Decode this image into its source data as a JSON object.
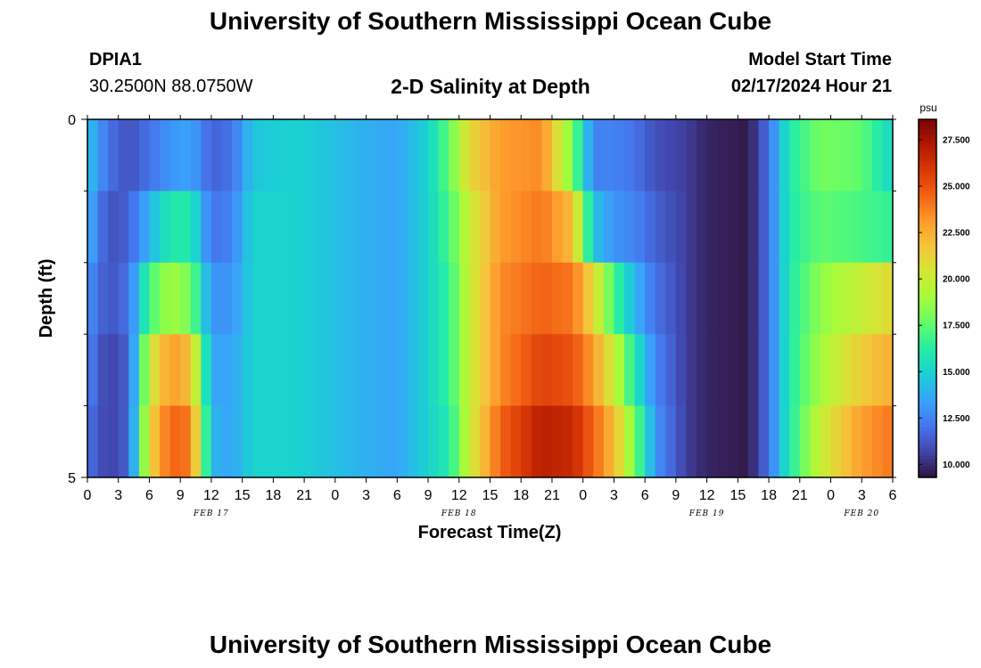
{
  "header": {
    "title": "University of Southern Mississippi Ocean Cube",
    "station_id": "DPIA1",
    "station_coords": "30.2500N  88.0750W",
    "model_start_label": "Model Start Time",
    "model_start_value": "02/17/2024 Hour 21"
  },
  "footer": {
    "title": "University of Southern Mississippi Ocean Cube"
  },
  "chart_data": {
    "type": "heatmap",
    "title": "2-D Salinity at Depth",
    "xlabel": "Forecast Time(Z)",
    "ylabel": "Depth (ft)",
    "x_tick_labels": [
      "0",
      "3",
      "6",
      "9",
      "12",
      "15",
      "18",
      "21",
      "0",
      "3",
      "6",
      "9",
      "12",
      "15",
      "18",
      "21",
      "0",
      "3",
      "6",
      "9",
      "12",
      "15",
      "18",
      "21",
      "0",
      "3",
      "6"
    ],
    "date_labels": [
      "FEB 17",
      "FEB 18",
      "FEB 19",
      "FEB 20"
    ],
    "y_tick_labels": [
      "0",
      "5"
    ],
    "ylim": [
      0,
      5
    ],
    "hours_total": 78,
    "depth_rows": 5,
    "colorbar": {
      "unit": "psu",
      "labels": [
        "27.500",
        "25.000",
        "22.500",
        "20.000",
        "17.500",
        "15.000",
        "12.500",
        "10.000"
      ],
      "range": [
        9.3,
        28.6
      ]
    },
    "anchors": [
      {
        "h": 0,
        "v": [
          14.5,
          14.0,
          13.0,
          12.5,
          12.0
        ]
      },
      {
        "h": 2,
        "v": [
          12.0,
          11.0,
          11.0,
          10.5,
          10.5
        ]
      },
      {
        "h": 4,
        "v": [
          11.0,
          11.5,
          12.0,
          11.5,
          11.5
        ]
      },
      {
        "h": 6,
        "v": [
          12.0,
          14.0,
          17.0,
          20.0,
          21.0
        ]
      },
      {
        "h": 8,
        "v": [
          13.0,
          16.0,
          19.0,
          23.0,
          24.5
        ]
      },
      {
        "h": 10,
        "v": [
          13.5,
          16.0,
          18.0,
          22.0,
          24.0
        ]
      },
      {
        "h": 12,
        "v": [
          11.5,
          12.0,
          13.0,
          13.5,
          14.0
        ]
      },
      {
        "h": 14,
        "v": [
          12.0,
          12.5,
          13.0,
          13.5,
          13.5
        ]
      },
      {
        "h": 16,
        "v": [
          14.5,
          15.0,
          15.0,
          15.0,
          15.0
        ]
      },
      {
        "h": 20,
        "v": [
          15.0,
          15.0,
          15.0,
          15.0,
          15.0
        ]
      },
      {
        "h": 26,
        "v": [
          14.0,
          14.0,
          14.0,
          14.0,
          14.0
        ]
      },
      {
        "h": 30,
        "v": [
          13.5,
          13.5,
          13.5,
          13.5,
          13.5
        ]
      },
      {
        "h": 33,
        "v": [
          15.0,
          15.0,
          15.0,
          15.0,
          15.0
        ]
      },
      {
        "h": 35,
        "v": [
          17.5,
          17.0,
          16.5,
          16.5,
          16.0
        ]
      },
      {
        "h": 37,
        "v": [
          21.0,
          20.0,
          20.0,
          20.0,
          20.0
        ]
      },
      {
        "h": 40,
        "v": [
          23.0,
          23.0,
          23.5,
          23.5,
          24.5
        ]
      },
      {
        "h": 44,
        "v": [
          23.5,
          24.0,
          24.5,
          25.5,
          27.0
        ]
      },
      {
        "h": 47,
        "v": [
          18.0,
          22.0,
          24.0,
          25.0,
          26.5
        ]
      },
      {
        "h": 49,
        "v": [
          12.5,
          14.5,
          21.0,
          23.0,
          24.5
        ]
      },
      {
        "h": 51,
        "v": [
          12.5,
          13.0,
          17.0,
          20.0,
          22.0
        ]
      },
      {
        "h": 53,
        "v": [
          12.0,
          12.5,
          14.0,
          16.0,
          18.0
        ]
      },
      {
        "h": 55,
        "v": [
          11.0,
          11.5,
          12.0,
          12.5,
          13.0
        ]
      },
      {
        "h": 58,
        "v": [
          10.5,
          10.5,
          10.5,
          10.5,
          10.5
        ]
      },
      {
        "h": 60,
        "v": [
          9.8,
          9.8,
          9.8,
          9.8,
          9.8
        ]
      },
      {
        "h": 64,
        "v": [
          9.5,
          9.5,
          9.5,
          9.5,
          9.5
        ]
      },
      {
        "h": 66,
        "v": [
          12.0,
          12.0,
          12.0,
          12.0,
          12.0
        ]
      },
      {
        "h": 68,
        "v": [
          16.0,
          16.0,
          16.0,
          16.0,
          16.0
        ]
      },
      {
        "h": 71,
        "v": [
          18.0,
          17.5,
          18.5,
          19.0,
          20.0
        ]
      },
      {
        "h": 75,
        "v": [
          17.5,
          17.0,
          20.0,
          21.5,
          23.0
        ]
      },
      {
        "h": 78,
        "v": [
          15.0,
          16.5,
          21.0,
          22.5,
          24.0
        ]
      }
    ]
  },
  "colors": {
    "scale": [
      "#30123b",
      "#4145ab",
      "#4675ed",
      "#39a2fc",
      "#1bcfd4",
      "#24eca6",
      "#61fc6c",
      "#a4fc3b",
      "#d1e834",
      "#f3c63a",
      "#fe9b2d",
      "#f36315",
      "#d93806",
      "#b11901",
      "#7a0402"
    ]
  }
}
